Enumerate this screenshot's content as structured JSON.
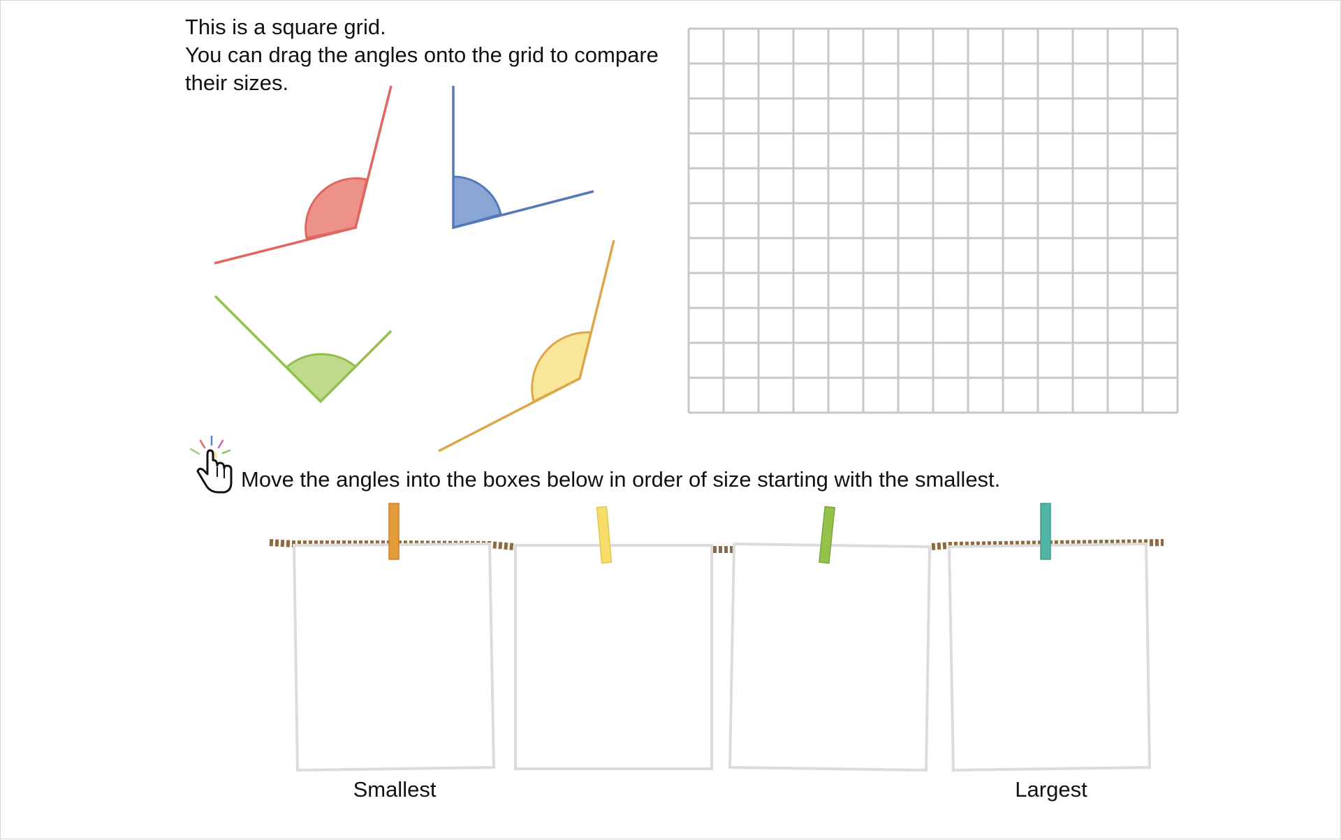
{
  "intro": {
    "line1": "This is a square grid.",
    "line2": "You can drag the angles onto the grid to compare",
    "line3": "their sizes."
  },
  "grid": {
    "columns": 14,
    "rows": 11,
    "line_color": "#c8c8c8"
  },
  "angles": [
    {
      "name": "red-angle",
      "stroke": "#e06660",
      "fill": "#ec928b"
    },
    {
      "name": "blue-angle",
      "stroke": "#5379b8",
      "fill": "#89a6d4"
    },
    {
      "name": "green-angle",
      "stroke": "#93c04b",
      "fill": "#bedb8b"
    },
    {
      "name": "yellow-angle",
      "stroke": "#dea64b",
      "fill": "#f9e799"
    }
  ],
  "hint": {
    "icon": "pointer-hand-icon",
    "text": "Move the angles into the boxes below in order of size starting with the smallest."
  },
  "washing_line": {
    "rope_color": "#8b6a45",
    "pegs": [
      {
        "color": "#e39b3a"
      },
      {
        "color": "#f6dc6a"
      },
      {
        "color": "#95c24b"
      },
      {
        "color": "#4fb5a5"
      }
    ]
  },
  "labels": {
    "smallest": "Smallest",
    "largest": "Largest"
  }
}
